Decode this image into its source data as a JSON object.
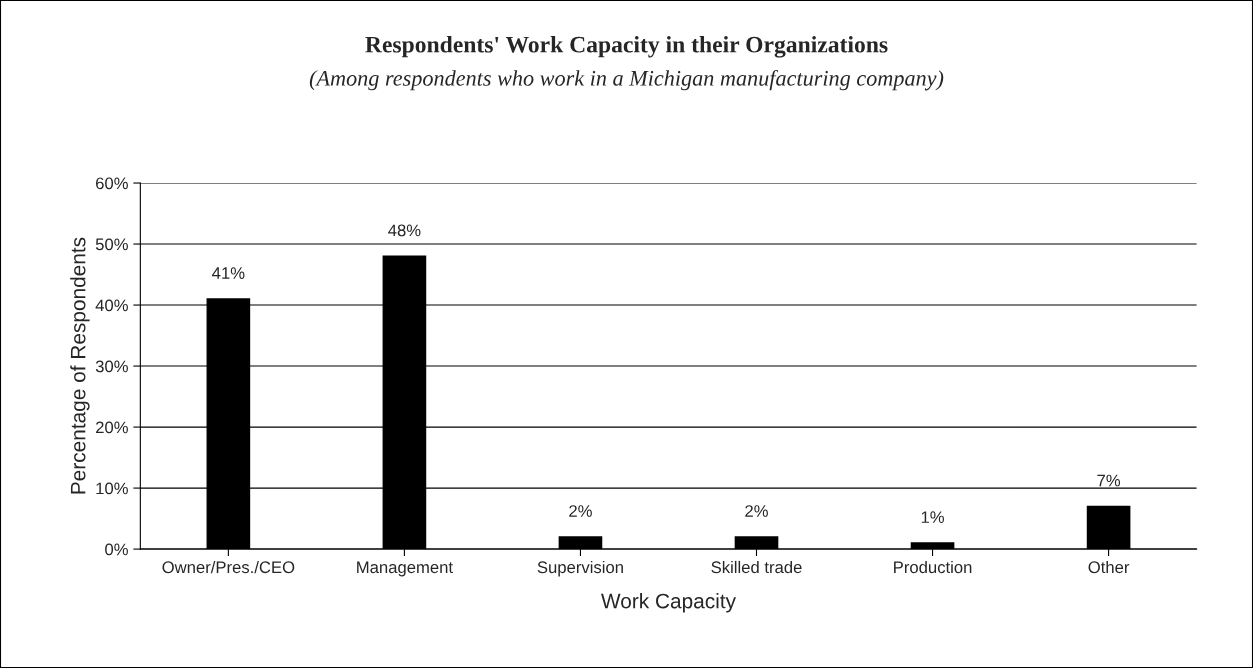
{
  "chart_data": {
    "type": "bar",
    "title": "Respondents' Work Capacity in their Organizations",
    "subtitle": "(Among respondents who work in a Michigan manufacturing company)",
    "xlabel": "Work Capacity",
    "ylabel": "Percentage of Respondents",
    "categories": [
      "Owner/Pres./CEO",
      "Management",
      "Supervision",
      "Skilled trade",
      "Production",
      "Other"
    ],
    "values": [
      41,
      48,
      2,
      2,
      1,
      7
    ],
    "value_labels": [
      "41%",
      "48%",
      "2%",
      "2%",
      "1%",
      "7%"
    ],
    "color": "#000000",
    "ylim": [
      0,
      60
    ],
    "yticks": [
      {
        "value": 0,
        "label": "0%"
      },
      {
        "value": 10,
        "label": "10%"
      },
      {
        "value": 20,
        "label": "20%"
      },
      {
        "value": 30,
        "label": "30%"
      },
      {
        "value": 40,
        "label": "40%"
      },
      {
        "value": 50,
        "label": "50%"
      },
      {
        "value": 60,
        "label": "60%"
      }
    ],
    "grid": "y",
    "legend": false
  }
}
